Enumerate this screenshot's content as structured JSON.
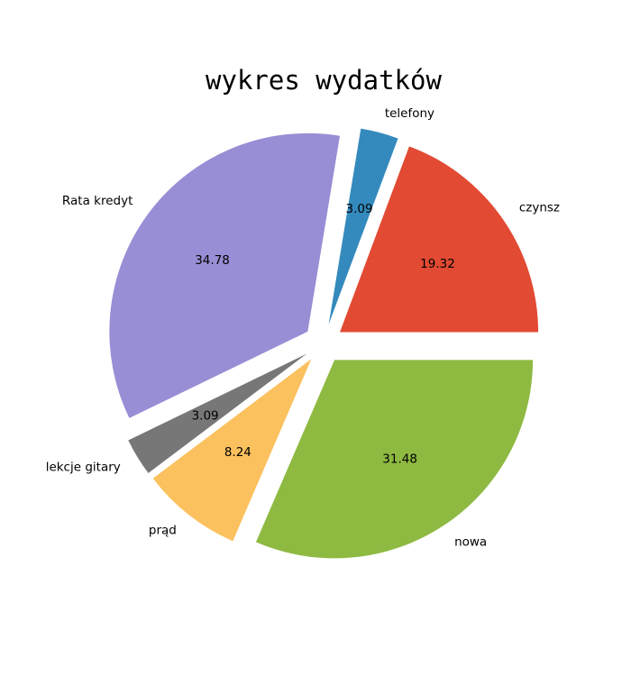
{
  "chart_data": {
    "type": "pie",
    "title": "wykres wydatków",
    "slices": [
      {
        "label": "czynsz",
        "value": 19.32,
        "display": "19.32",
        "color": "#E24A33"
      },
      {
        "label": "telefony",
        "value": 3.09,
        "display": "3.09",
        "color": "#348ABD"
      },
      {
        "label": "Rata kredyt",
        "value": 34.78,
        "display": "34.78",
        "color": "#988ED5"
      },
      {
        "label": "lekcje gitary",
        "value": 3.09,
        "display": "3.09",
        "color": "#777777"
      },
      {
        "label": "prąd",
        "value": 8.24,
        "display": "8.24",
        "color": "#FBC15E"
      },
      {
        "label": "nowa",
        "value": 31.48,
        "display": "31.48",
        "color": "#8EBA42"
      }
    ],
    "start_angle_deg": 0,
    "direction": "counterclockwise",
    "exploded": true,
    "legend": "none",
    "background": "#ffffff"
  }
}
